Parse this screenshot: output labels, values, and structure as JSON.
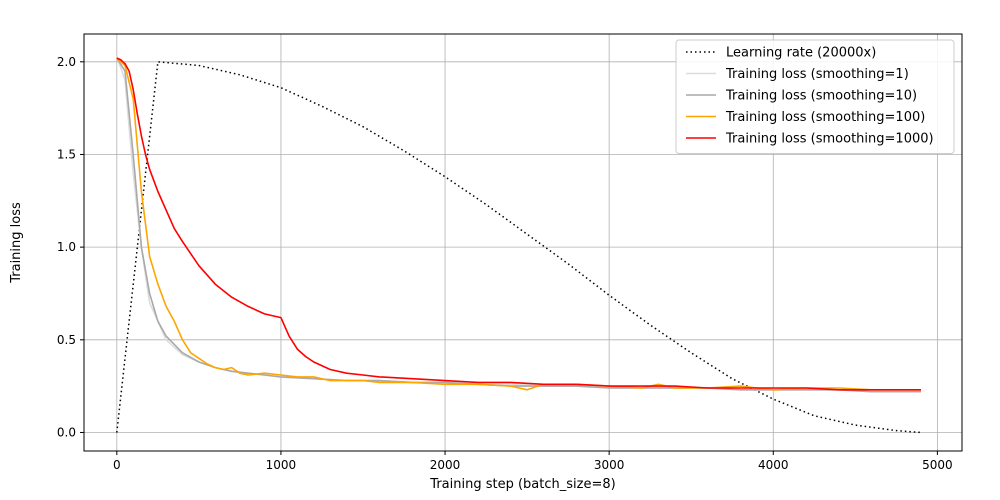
{
  "chart_data": {
    "type": "line",
    "title": "",
    "xlabel": "Training step (batch_size=8)",
    "ylabel": "Training loss",
    "xlim": [
      -200,
      5150
    ],
    "ylim": [
      -0.1,
      2.15
    ],
    "xticks": [
      0,
      1000,
      2000,
      3000,
      4000,
      5000
    ],
    "yticks": [
      0.0,
      0.5,
      1.0,
      1.5,
      2.0
    ],
    "grid": true,
    "legend_position": "top-right",
    "series": [
      {
        "name": "Learning rate (20000x)",
        "color": "#000000",
        "style": "dotted",
        "x": [
          0,
          250,
          500,
          750,
          1000,
          1250,
          1500,
          1750,
          2000,
          2250,
          2500,
          2750,
          3000,
          3250,
          3500,
          3750,
          4000,
          4250,
          4500,
          4750,
          4900
        ],
        "y": [
          0.0,
          2.0,
          1.98,
          1.93,
          1.86,
          1.76,
          1.65,
          1.52,
          1.38,
          1.23,
          1.07,
          0.91,
          0.74,
          0.58,
          0.43,
          0.29,
          0.18,
          0.09,
          0.04,
          0.01,
          0.0
        ]
      },
      {
        "name": "Training loss (smoothing=1)",
        "color": "#dcdcdc",
        "style": "solid",
        "x": [
          0,
          50,
          100,
          150,
          200,
          250,
          300,
          400,
          500,
          600,
          700,
          800,
          900,
          1000,
          1200,
          1400,
          1600,
          1800,
          2000,
          2200,
          2400,
          2600,
          2800,
          3000,
          3200,
          3400,
          3600,
          3800,
          4000,
          4200,
          4400,
          4600,
          4800,
          4900
        ],
        "y": [
          2.03,
          1.9,
          1.4,
          1.0,
          0.7,
          0.6,
          0.5,
          0.42,
          0.38,
          0.35,
          0.33,
          0.32,
          0.31,
          0.3,
          0.29,
          0.28,
          0.28,
          0.27,
          0.27,
          0.26,
          0.26,
          0.25,
          0.25,
          0.24,
          0.24,
          0.24,
          0.24,
          0.23,
          0.23,
          0.23,
          0.23,
          0.22,
          0.22,
          0.22
        ]
      },
      {
        "name": "Training loss (smoothing=10)",
        "color": "#a9a9a9",
        "style": "solid",
        "x": [
          0,
          50,
          100,
          150,
          200,
          250,
          300,
          400,
          500,
          600,
          700,
          800,
          900,
          1000,
          1200,
          1400,
          1600,
          1800,
          2000,
          2200,
          2400,
          2600,
          2800,
          3000,
          3200,
          3400,
          3600,
          3800,
          4000,
          4200,
          4400,
          4600,
          4800,
          4900
        ],
        "y": [
          2.02,
          1.95,
          1.5,
          1.0,
          0.75,
          0.6,
          0.52,
          0.43,
          0.38,
          0.35,
          0.33,
          0.32,
          0.31,
          0.3,
          0.29,
          0.28,
          0.28,
          0.27,
          0.27,
          0.26,
          0.25,
          0.25,
          0.25,
          0.24,
          0.24,
          0.24,
          0.24,
          0.23,
          0.23,
          0.23,
          0.23,
          0.22,
          0.22,
          0.22
        ]
      },
      {
        "name": "Training loss (smoothing=100)",
        "color": "#ffa500",
        "style": "solid",
        "x": [
          0,
          50,
          100,
          150,
          200,
          250,
          300,
          350,
          400,
          450,
          500,
          550,
          600,
          650,
          700,
          750,
          800,
          900,
          1000,
          1100,
          1200,
          1300,
          1400,
          1500,
          1600,
          1800,
          2000,
          2200,
          2400,
          2500,
          2600,
          2800,
          3000,
          3200,
          3300,
          3400,
          3600,
          3800,
          4000,
          4200,
          4400,
          4600,
          4800,
          4900
        ],
        "y": [
          2.02,
          1.98,
          1.8,
          1.3,
          0.95,
          0.8,
          0.68,
          0.6,
          0.5,
          0.43,
          0.4,
          0.37,
          0.35,
          0.34,
          0.35,
          0.32,
          0.31,
          0.32,
          0.31,
          0.3,
          0.3,
          0.28,
          0.28,
          0.28,
          0.27,
          0.27,
          0.26,
          0.26,
          0.25,
          0.23,
          0.26,
          0.26,
          0.25,
          0.24,
          0.26,
          0.24,
          0.24,
          0.25,
          0.23,
          0.24,
          0.24,
          0.23,
          0.23,
          0.23
        ]
      },
      {
        "name": "Training loss (smoothing=1000)",
        "color": "#ff0000",
        "style": "solid",
        "x": [
          0,
          25,
          50,
          75,
          100,
          125,
          150,
          175,
          200,
          250,
          300,
          350,
          400,
          500,
          600,
          700,
          800,
          900,
          1000,
          1050,
          1100,
          1150,
          1200,
          1300,
          1400,
          1500,
          1600,
          1800,
          2000,
          2200,
          2400,
          2600,
          2800,
          3000,
          3200,
          3400,
          3600,
          3800,
          4000,
          4200,
          4400,
          4600,
          4800,
          4900
        ],
        "y": [
          2.02,
          2.01,
          1.99,
          1.95,
          1.85,
          1.72,
          1.6,
          1.5,
          1.42,
          1.3,
          1.2,
          1.1,
          1.03,
          0.9,
          0.8,
          0.73,
          0.68,
          0.64,
          0.62,
          0.52,
          0.45,
          0.41,
          0.38,
          0.34,
          0.32,
          0.31,
          0.3,
          0.29,
          0.28,
          0.27,
          0.27,
          0.26,
          0.26,
          0.25,
          0.25,
          0.25,
          0.24,
          0.24,
          0.24,
          0.24,
          0.23,
          0.23,
          0.23,
          0.23
        ]
      }
    ]
  }
}
